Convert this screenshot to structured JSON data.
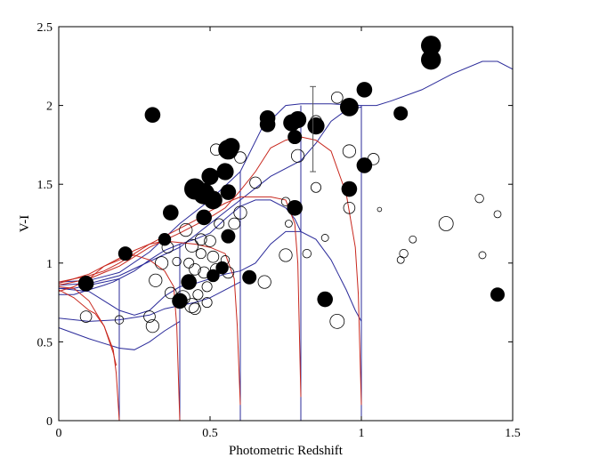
{
  "chart_data": {
    "type": "scatter",
    "title": "",
    "xlabel": "Photometric Redshift",
    "ylabel": "V-I",
    "xlim": [
      0,
      1.5
    ],
    "ylim": [
      0,
      2.5
    ],
    "grid": false,
    "box": true,
    "x_ticks": [
      {
        "value": 0,
        "label": "0"
      },
      {
        "value": 0.5,
        "label": "0.5"
      },
      {
        "value": 1,
        "label": "1"
      },
      {
        "value": 1.5,
        "label": "1.5"
      }
    ],
    "y_ticks": [
      {
        "value": 0,
        "label": "0"
      },
      {
        "value": 0.5,
        "label": "0.5"
      },
      {
        "value": 1,
        "label": "1"
      },
      {
        "value": 1.5,
        "label": "1.5"
      },
      {
        "value": 2,
        "label": "2"
      },
      {
        "value": 2.5,
        "label": "2.5"
      }
    ],
    "colors": {
      "blue_track": "#2b2b9a",
      "red_track": "#c8281e",
      "marker": "#000000"
    },
    "filled_points": [
      {
        "x": 0.09,
        "y": 0.87,
        "s": 1.1
      },
      {
        "x": 0.22,
        "y": 1.06,
        "s": 1.0
      },
      {
        "x": 0.31,
        "y": 1.94,
        "s": 1.1
      },
      {
        "x": 0.35,
        "y": 1.15,
        "s": 0.9
      },
      {
        "x": 0.37,
        "y": 1.32,
        "s": 1.1
      },
      {
        "x": 0.4,
        "y": 0.76,
        "s": 1.1
      },
      {
        "x": 0.43,
        "y": 0.88,
        "s": 1.1
      },
      {
        "x": 0.45,
        "y": 1.47,
        "s": 1.5
      },
      {
        "x": 0.48,
        "y": 1.29,
        "s": 1.1
      },
      {
        "x": 0.48,
        "y": 1.44,
        "s": 1.5
      },
      {
        "x": 0.5,
        "y": 1.55,
        "s": 1.2
      },
      {
        "x": 0.51,
        "y": 1.4,
        "s": 1.3
      },
      {
        "x": 0.51,
        "y": 0.92,
        "s": 0.9
      },
      {
        "x": 0.54,
        "y": 0.97,
        "s": 0.9
      },
      {
        "x": 0.55,
        "y": 1.58,
        "s": 1.2
      },
      {
        "x": 0.56,
        "y": 1.17,
        "s": 1.0
      },
      {
        "x": 0.56,
        "y": 1.45,
        "s": 1.1
      },
      {
        "x": 0.56,
        "y": 1.72,
        "s": 1.4
      },
      {
        "x": 0.57,
        "y": 1.74,
        "s": 1.2
      },
      {
        "x": 0.63,
        "y": 0.91,
        "s": 1.0
      },
      {
        "x": 0.69,
        "y": 1.92,
        "s": 1.1
      },
      {
        "x": 0.69,
        "y": 1.88,
        "s": 1.1
      },
      {
        "x": 0.77,
        "y": 1.89,
        "s": 1.2
      },
      {
        "x": 0.78,
        "y": 1.8,
        "s": 1.0
      },
      {
        "x": 0.78,
        "y": 1.35,
        "s": 1.1
      },
      {
        "x": 0.79,
        "y": 1.91,
        "s": 1.2
      },
      {
        "x": 0.85,
        "y": 1.87,
        "s": 1.2
      },
      {
        "x": 0.88,
        "y": 0.77,
        "s": 1.1
      },
      {
        "x": 0.96,
        "y": 1.99,
        "s": 1.3
      },
      {
        "x": 0.96,
        "y": 1.47,
        "s": 1.1
      },
      {
        "x": 1.01,
        "y": 1.62,
        "s": 1.1
      },
      {
        "x": 1.01,
        "y": 2.1,
        "s": 1.1
      },
      {
        "x": 1.13,
        "y": 1.95,
        "s": 1.0
      },
      {
        "x": 1.23,
        "y": 2.38,
        "s": 1.4
      },
      {
        "x": 1.23,
        "y": 2.29,
        "s": 1.4
      },
      {
        "x": 1.45,
        "y": 0.8,
        "s": 1.0
      }
    ],
    "open_points": [
      {
        "x": 0.09,
        "y": 0.66,
        "s": 0.8
      },
      {
        "x": 0.2,
        "y": 0.64,
        "s": 0.6
      },
      {
        "x": 0.3,
        "y": 0.66,
        "s": 0.8
      },
      {
        "x": 0.31,
        "y": 0.6,
        "s": 0.9
      },
      {
        "x": 0.32,
        "y": 0.89,
        "s": 0.9
      },
      {
        "x": 0.34,
        "y": 1.0,
        "s": 0.9
      },
      {
        "x": 0.36,
        "y": 1.1,
        "s": 0.8
      },
      {
        "x": 0.37,
        "y": 0.81,
        "s": 0.8
      },
      {
        "x": 0.39,
        "y": 1.01,
        "s": 0.6
      },
      {
        "x": 0.41,
        "y": 0.78,
        "s": 1.0
      },
      {
        "x": 0.42,
        "y": 1.21,
        "s": 0.9
      },
      {
        "x": 0.43,
        "y": 1.0,
        "s": 0.7
      },
      {
        "x": 0.43,
        "y": 0.88,
        "s": 0.9
      },
      {
        "x": 0.44,
        "y": 0.73,
        "s": 1.0
      },
      {
        "x": 0.44,
        "y": 1.11,
        "s": 0.9
      },
      {
        "x": 0.45,
        "y": 0.96,
        "s": 0.8
      },
      {
        "x": 0.45,
        "y": 0.71,
        "s": 0.8
      },
      {
        "x": 0.46,
        "y": 0.8,
        "s": 0.7
      },
      {
        "x": 0.47,
        "y": 1.06,
        "s": 0.7
      },
      {
        "x": 0.47,
        "y": 1.15,
        "s": 0.8
      },
      {
        "x": 0.48,
        "y": 0.94,
        "s": 0.8
      },
      {
        "x": 0.49,
        "y": 0.85,
        "s": 0.7
      },
      {
        "x": 0.49,
        "y": 0.75,
        "s": 0.7
      },
      {
        "x": 0.5,
        "y": 1.14,
        "s": 0.8
      },
      {
        "x": 0.51,
        "y": 1.04,
        "s": 0.8
      },
      {
        "x": 0.52,
        "y": 0.96,
        "s": 0.8
      },
      {
        "x": 0.52,
        "y": 1.72,
        "s": 0.8
      },
      {
        "x": 0.53,
        "y": 1.25,
        "s": 0.7
      },
      {
        "x": 0.55,
        "y": 1.02,
        "s": 0.6
      },
      {
        "x": 0.56,
        "y": 0.94,
        "s": 0.8
      },
      {
        "x": 0.58,
        "y": 1.25,
        "s": 0.8
      },
      {
        "x": 0.6,
        "y": 1.32,
        "s": 0.9
      },
      {
        "x": 0.6,
        "y": 1.67,
        "s": 0.8
      },
      {
        "x": 0.65,
        "y": 1.51,
        "s": 0.8
      },
      {
        "x": 0.68,
        "y": 0.88,
        "s": 0.9
      },
      {
        "x": 0.75,
        "y": 1.05,
        "s": 0.9
      },
      {
        "x": 0.75,
        "y": 1.39,
        "s": 0.6
      },
      {
        "x": 0.76,
        "y": 1.25,
        "s": 0.5
      },
      {
        "x": 0.79,
        "y": 1.68,
        "s": 0.9
      },
      {
        "x": 0.82,
        "y": 1.06,
        "s": 0.6
      },
      {
        "x": 0.85,
        "y": 1.48,
        "s": 0.7
      },
      {
        "x": 0.85,
        "y": 1.9,
        "s": 0.8
      },
      {
        "x": 0.88,
        "y": 1.16,
        "s": 0.5
      },
      {
        "x": 0.92,
        "y": 0.63,
        "s": 1.0
      },
      {
        "x": 0.92,
        "y": 2.05,
        "s": 0.8
      },
      {
        "x": 0.96,
        "y": 1.71,
        "s": 0.9
      },
      {
        "x": 0.96,
        "y": 1.35,
        "s": 0.8
      },
      {
        "x": 1.04,
        "y": 1.66,
        "s": 0.8
      },
      {
        "x": 1.06,
        "y": 1.34,
        "s": 0.3
      },
      {
        "x": 1.13,
        "y": 1.02,
        "s": 0.5
      },
      {
        "x": 1.14,
        "y": 1.06,
        "s": 0.6
      },
      {
        "x": 1.17,
        "y": 1.15,
        "s": 0.5
      },
      {
        "x": 1.28,
        "y": 1.25,
        "s": 1.0
      },
      {
        "x": 1.39,
        "y": 1.41,
        "s": 0.6
      },
      {
        "x": 1.4,
        "y": 1.05,
        "s": 0.5
      },
      {
        "x": 1.45,
        "y": 1.31,
        "s": 0.5
      }
    ],
    "error_bar": {
      "x": 0.84,
      "y_low": 1.58,
      "y_high": 2.12,
      "cap": 0.01
    },
    "blue_tracks": [
      [
        [
          0,
          0.88
        ],
        [
          0.1,
          0.89
        ],
        [
          0.2,
          0.94
        ],
        [
          0.3,
          1.07
        ],
        [
          0.4,
          1.25
        ],
        [
          0.5,
          1.4
        ],
        [
          0.6,
          1.58
        ],
        [
          0.67,
          1.85
        ],
        [
          0.75,
          2.0
        ],
        [
          0.8,
          2.01
        ],
        [
          0.9,
          2.01
        ],
        [
          1.0,
          2.0
        ],
        [
          1.05,
          2.0
        ],
        [
          1.1,
          2.03
        ],
        [
          1.2,
          2.1
        ],
        [
          1.3,
          2.2
        ],
        [
          1.4,
          2.28
        ],
        [
          1.45,
          2.28
        ],
        [
          1.5,
          2.23
        ]
      ],
      [
        [
          0,
          0.86
        ],
        [
          0.1,
          0.87
        ],
        [
          0.2,
          0.92
        ],
        [
          0.3,
          1.01
        ],
        [
          0.4,
          1.1
        ],
        [
          0.5,
          1.25
        ],
        [
          0.6,
          1.4
        ],
        [
          0.7,
          1.55
        ],
        [
          0.8,
          1.65
        ],
        [
          0.85,
          1.76
        ],
        [
          0.9,
          1.9
        ],
        [
          0.95,
          1.97
        ],
        [
          1.0,
          1.99
        ]
      ],
      [
        [
          0,
          0.84
        ],
        [
          0.05,
          0.84
        ],
        [
          0.1,
          0.86
        ],
        [
          0.15,
          0.88
        ],
        [
          0.2,
          0.9
        ],
        [
          0.25,
          0.95
        ],
        [
          0.3,
          1.02
        ],
        [
          0.35,
          1.08
        ],
        [
          0.4,
          1.12
        ],
        [
          0.45,
          1.15
        ],
        [
          0.5,
          1.19
        ],
        [
          0.55,
          1.28
        ],
        [
          0.6,
          1.36
        ],
        [
          0.65,
          1.4
        ],
        [
          0.7,
          1.4
        ],
        [
          0.75,
          1.35
        ],
        [
          0.78,
          1.28
        ],
        [
          0.8,
          1.2
        ]
      ],
      [
        [
          0,
          0.8
        ],
        [
          0.05,
          0.8
        ],
        [
          0.1,
          0.83
        ],
        [
          0.15,
          0.86
        ],
        [
          0.18,
          0.88
        ],
        [
          0.2,
          0.9
        ]
      ],
      [
        [
          0,
          0.84
        ],
        [
          0.1,
          0.82
        ],
        [
          0.2,
          0.7
        ],
        [
          0.25,
          0.67
        ],
        [
          0.3,
          0.7
        ],
        [
          0.35,
          0.79
        ],
        [
          0.4,
          0.85
        ],
        [
          0.45,
          0.87
        ],
        [
          0.5,
          0.9
        ],
        [
          0.55,
          0.93
        ],
        [
          0.6,
          0.95
        ],
        [
          0.65,
          1.0
        ],
        [
          0.7,
          1.12
        ],
        [
          0.75,
          1.2
        ],
        [
          0.8,
          1.2
        ],
        [
          0.85,
          1.15
        ],
        [
          0.9,
          1.02
        ],
        [
          0.95,
          0.83
        ],
        [
          0.98,
          0.7
        ],
        [
          1.0,
          0.63
        ]
      ],
      [
        [
          0,
          0.65
        ],
        [
          0.1,
          0.63
        ],
        [
          0.2,
          0.64
        ],
        [
          0.3,
          0.67
        ],
        [
          0.35,
          0.71
        ],
        [
          0.4,
          0.73
        ],
        [
          0.45,
          0.75
        ],
        [
          0.5,
          0.78
        ],
        [
          0.55,
          0.83
        ],
        [
          0.58,
          0.86
        ],
        [
          0.6,
          0.88
        ]
      ],
      [
        [
          0,
          0.59
        ],
        [
          0.1,
          0.52
        ],
        [
          0.2,
          0.46
        ],
        [
          0.25,
          0.45
        ],
        [
          0.3,
          0.5
        ],
        [
          0.35,
          0.57
        ],
        [
          0.4,
          0.63
        ]
      ]
    ],
    "blue_drops": [
      {
        "x": 0.2,
        "y_top": 0.9
      },
      {
        "x": 0.4,
        "y_top": 1.12
      },
      {
        "x": 0.6,
        "y_top": 1.58
      },
      {
        "x": 0.8,
        "y_top": 2.0
      },
      {
        "x": 1.0,
        "y_top": 2.0
      }
    ],
    "red_tracks": [
      [
        [
          0,
          0.86
        ],
        [
          0.1,
          0.9
        ],
        [
          0.2,
          0.98
        ],
        [
          0.3,
          1.1
        ],
        [
          0.4,
          1.19
        ],
        [
          0.5,
          1.29
        ],
        [
          0.55,
          1.35
        ],
        [
          0.6,
          1.46
        ],
        [
          0.65,
          1.58
        ],
        [
          0.7,
          1.73
        ],
        [
          0.75,
          1.78
        ],
        [
          0.8,
          1.8
        ],
        [
          0.85,
          1.78
        ],
        [
          0.9,
          1.71
        ],
        [
          0.95,
          1.44
        ],
        [
          0.98,
          1.1
        ],
        [
          0.99,
          0.8
        ],
        [
          1.0,
          0.1
        ]
      ],
      [
        [
          0,
          0.88
        ],
        [
          0.1,
          0.92
        ],
        [
          0.15,
          0.95
        ],
        [
          0.2,
          1.0
        ],
        [
          0.25,
          1.06
        ],
        [
          0.3,
          1.12
        ],
        [
          0.35,
          1.17
        ],
        [
          0.4,
          1.22
        ],
        [
          0.45,
          1.27
        ],
        [
          0.5,
          1.33
        ],
        [
          0.55,
          1.38
        ],
        [
          0.6,
          1.42
        ],
        [
          0.65,
          1.42
        ],
        [
          0.7,
          1.42
        ],
        [
          0.75,
          1.4
        ],
        [
          0.78,
          1.25
        ],
        [
          0.79,
          1.0
        ],
        [
          0.8,
          0.15
        ]
      ],
      [
        [
          0,
          0.87
        ],
        [
          0.05,
          0.9
        ],
        [
          0.1,
          0.93
        ],
        [
          0.15,
          0.98
        ],
        [
          0.2,
          1.03
        ],
        [
          0.25,
          1.08
        ],
        [
          0.3,
          1.12
        ],
        [
          0.35,
          1.14
        ],
        [
          0.4,
          1.13
        ],
        [
          0.45,
          1.12
        ],
        [
          0.5,
          1.1
        ],
        [
          0.55,
          1.06
        ],
        [
          0.58,
          0.9
        ],
        [
          0.59,
          0.6
        ],
        [
          0.6,
          0.1
        ]
      ],
      [
        [
          0,
          0.82
        ],
        [
          0.05,
          0.85
        ],
        [
          0.1,
          0.9
        ],
        [
          0.15,
          0.98
        ],
        [
          0.2,
          1.02
        ],
        [
          0.25,
          1.05
        ],
        [
          0.3,
          1.02
        ],
        [
          0.35,
          0.95
        ],
        [
          0.38,
          0.85
        ],
        [
          0.39,
          0.6
        ],
        [
          0.4,
          0.0
        ]
      ],
      [
        [
          0,
          0.85
        ],
        [
          0.05,
          0.84
        ],
        [
          0.1,
          0.76
        ],
        [
          0.15,
          0.6
        ],
        [
          0.18,
          0.45
        ],
        [
          0.19,
          0.3
        ],
        [
          0.2,
          0.0
        ]
      ],
      [
        [
          0,
          0.83
        ],
        [
          0.05,
          0.78
        ],
        [
          0.1,
          0.7
        ],
        [
          0.12,
          0.68
        ],
        [
          0.15,
          0.6
        ],
        [
          0.18,
          0.43
        ],
        [
          0.19,
          0.35
        ]
      ]
    ]
  }
}
